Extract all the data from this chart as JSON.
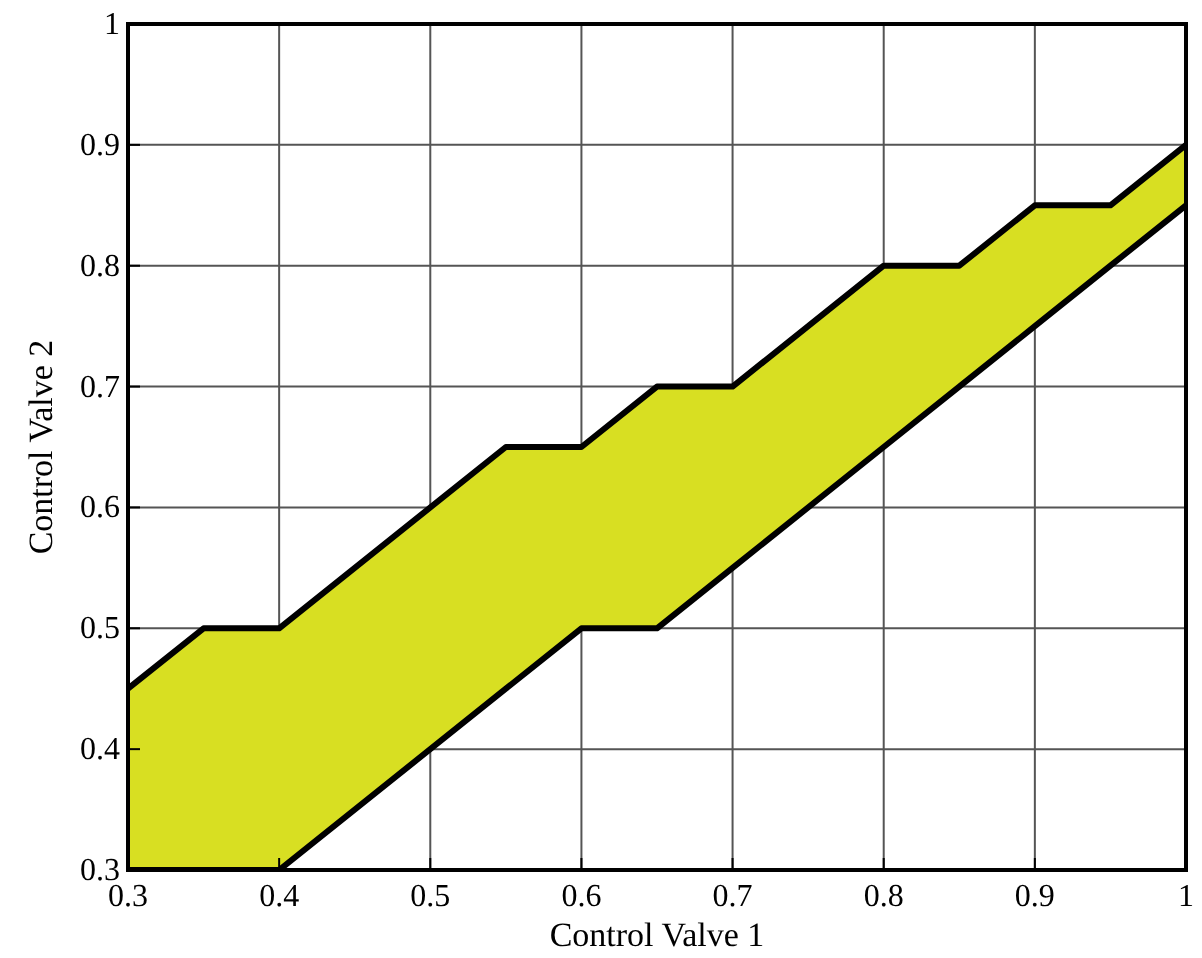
{
  "chart_data": {
    "type": "area",
    "xlabel": "Control Valve 1",
    "ylabel": "Control Valve 2",
    "x": [
      0.3,
      0.35,
      0.4,
      0.55,
      0.6,
      0.65,
      0.7,
      0.8,
      0.85,
      0.9,
      0.95,
      1.0
    ],
    "series": [
      {
        "color": "#d8df22",
        "values": [
          0.45,
          0.5,
          0.5,
          0.65,
          0.65,
          0.7,
          0.7,
          0.8,
          0.8,
          0.85,
          0.85,
          0.9
        ]
      },
      {
        "type": "line",
        "color": "#000000",
        "values": [
          0.3,
          0.3,
          0.3,
          0.45,
          0.5,
          0.5,
          0.55,
          0.65,
          0.7,
          0.75,
          0.8,
          0.85
        ]
      }
    ],
    "xlim": [
      0.3,
      1
    ],
    "ylim": [
      0.3,
      1
    ],
    "xticks": [
      0.3,
      0.4,
      0.5,
      0.6,
      0.7,
      0.8,
      0.9,
      1
    ],
    "yticks": [
      0.3,
      0.4,
      0.5,
      0.6,
      0.7,
      0.8,
      0.9,
      1
    ],
    "grid": true
  }
}
